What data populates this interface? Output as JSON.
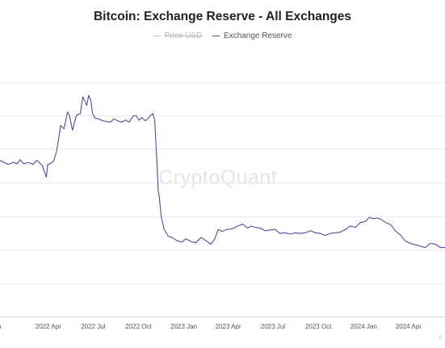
{
  "chart_data": {
    "type": "line",
    "title": "Bitcoin: Exchange Reserve - All Exchanges",
    "legend": [
      {
        "name": "Price USD",
        "color": "#b8b8b8",
        "hidden": true
      },
      {
        "name": "Exchange Reserve",
        "color": "#5147a8",
        "hidden": false
      }
    ],
    "legend_position": "top-center",
    "grid": "horizontal",
    "y_axis_labels_shown": false,
    "x_tick_labels": [
      "2022 Apr",
      "2022 Jul",
      "2022 Oct",
      "2023 Jan",
      "2023 Apr",
      "2023 Jul",
      "2023 Oct",
      "2024 Jan",
      "2024 Apr"
    ],
    "x_range": [
      "2021-12-24",
      "2024-06-14"
    ],
    "series": [
      {
        "name": "Exchange Reserve",
        "color": "#5147a8",
        "x": [
          "2021-12-24",
          "2022-01-01",
          "2022-01-10",
          "2022-01-20",
          "2022-01-28",
          "2022-02-03",
          "2022-02-10",
          "2022-02-20",
          "2022-03-01",
          "2022-03-08",
          "2022-03-12",
          "2022-03-20",
          "2022-03-28",
          "2022-03-31",
          "2022-04-05",
          "2022-04-12",
          "2022-04-18",
          "2022-04-26",
          "2022-05-03",
          "2022-05-08",
          "2022-05-10",
          "2022-05-14",
          "2022-05-20",
          "2022-05-28",
          "2022-06-05",
          "2022-06-10",
          "2022-06-14",
          "2022-06-18",
          "2022-06-22",
          "2022-06-26",
          "2022-06-30",
          "2022-07-05",
          "2022-07-12",
          "2022-07-20",
          "2022-07-28",
          "2022-08-05",
          "2022-08-12",
          "2022-08-20",
          "2022-08-28",
          "2022-09-05",
          "2022-09-12",
          "2022-09-20",
          "2022-09-26",
          "2022-10-02",
          "2022-10-08",
          "2022-10-15",
          "2022-10-22",
          "2022-10-30",
          "2022-11-03",
          "2022-11-06",
          "2022-11-08",
          "2022-11-10",
          "2022-11-12",
          "2022-11-16",
          "2022-11-22",
          "2022-11-30",
          "2022-12-08",
          "2022-12-18",
          "2022-12-28",
          "2023-01-05",
          "2023-01-15",
          "2023-01-25",
          "2023-02-05",
          "2023-02-15",
          "2023-02-25",
          "2023-03-05",
          "2023-03-12",
          "2023-03-20",
          "2023-03-30",
          "2023-04-10",
          "2023-04-20",
          "2023-05-01",
          "2023-05-10",
          "2023-05-18",
          "2023-05-26",
          "2023-06-05",
          "2023-06-15",
          "2023-06-25",
          "2023-07-05",
          "2023-07-15",
          "2023-07-25",
          "2023-08-05",
          "2023-08-15",
          "2023-08-25",
          "2023-09-05",
          "2023-09-15",
          "2023-09-25",
          "2023-10-05",
          "2023-10-15",
          "2023-10-25",
          "2023-11-05",
          "2023-11-15",
          "2023-11-25",
          "2023-12-05",
          "2023-12-15",
          "2023-12-25",
          "2024-01-05",
          "2024-01-12",
          "2024-01-20",
          "2024-01-28",
          "2024-02-05",
          "2024-02-15",
          "2024-02-25",
          "2024-03-05",
          "2024-03-15",
          "2024-03-25",
          "2024-04-05",
          "2024-04-15",
          "2024-04-25",
          "2024-05-05",
          "2024-05-15",
          "2024-05-25",
          "2024-06-05",
          "2024-06-14"
        ],
        "y": [
          2.433,
          2.43,
          2.427,
          2.43,
          2.428,
          2.434,
          2.428,
          2.43,
          2.427,
          2.433,
          2.431,
          2.425,
          2.408,
          2.427,
          2.428,
          2.432,
          2.447,
          2.485,
          2.48,
          2.498,
          2.505,
          2.5,
          2.478,
          2.5,
          2.503,
          2.528,
          2.522,
          2.515,
          2.53,
          2.523,
          2.503,
          2.496,
          2.495,
          2.492,
          2.491,
          2.49,
          2.495,
          2.492,
          2.49,
          2.493,
          2.49,
          2.499,
          2.5,
          2.493,
          2.497,
          2.492,
          2.497,
          2.503,
          2.493,
          2.45,
          2.42,
          2.387,
          2.38,
          2.35,
          2.33,
          2.32,
          2.318,
          2.313,
          2.311,
          2.316,
          2.312,
          2.31,
          2.318,
          2.313,
          2.308,
          2.316,
          2.33,
          2.327,
          2.33,
          2.331,
          2.335,
          2.338,
          2.332,
          2.335,
          2.333,
          2.332,
          2.328,
          2.329,
          2.33,
          2.324,
          2.325,
          2.323,
          2.325,
          2.324,
          2.325,
          2.328,
          2.325,
          2.324,
          2.321,
          2.324,
          2.325,
          2.326,
          2.33,
          2.335,
          2.333,
          2.34,
          2.342,
          2.348,
          2.346,
          2.347,
          2.345,
          2.34,
          2.337,
          2.328,
          2.322,
          2.313,
          2.309,
          2.307,
          2.305,
          2.303,
          2.309,
          2.308,
          2.303,
          2.303
        ]
      }
    ],
    "ylim": [
      2.2,
      2.6
    ],
    "y_gridlines": [
      2.55,
      2.5,
      2.45,
      2.4,
      2.35,
      2.3,
      2.25
    ]
  },
  "watermark": "CryptoQuant",
  "credit": "©"
}
